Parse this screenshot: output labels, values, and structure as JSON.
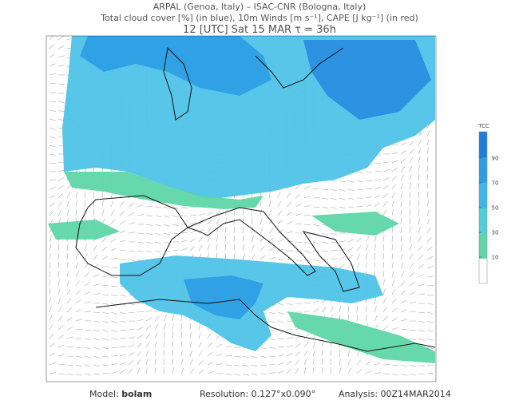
{
  "header": {
    "line1": "ARPAL (Genoa, Italy)  –  ISAC-CNR (Bologna, Italy)",
    "line2": "Total cloud cover [%] (in blue), 10m Winds [m s⁻¹], CAPE [J kg⁻¹] (in red)",
    "line3": "12 [UTC] Sat 15 MAR   τ = 36h"
  },
  "colorbar": {
    "title": "TCC",
    "ticks": [
      10,
      30,
      50,
      70,
      90
    ]
  },
  "footer": {
    "model_label": "Model:",
    "model": "bolam",
    "resolution": "Resolution: 0.127°x0.090°",
    "analysis": "Analysis: 00Z14MAR2014"
  }
}
